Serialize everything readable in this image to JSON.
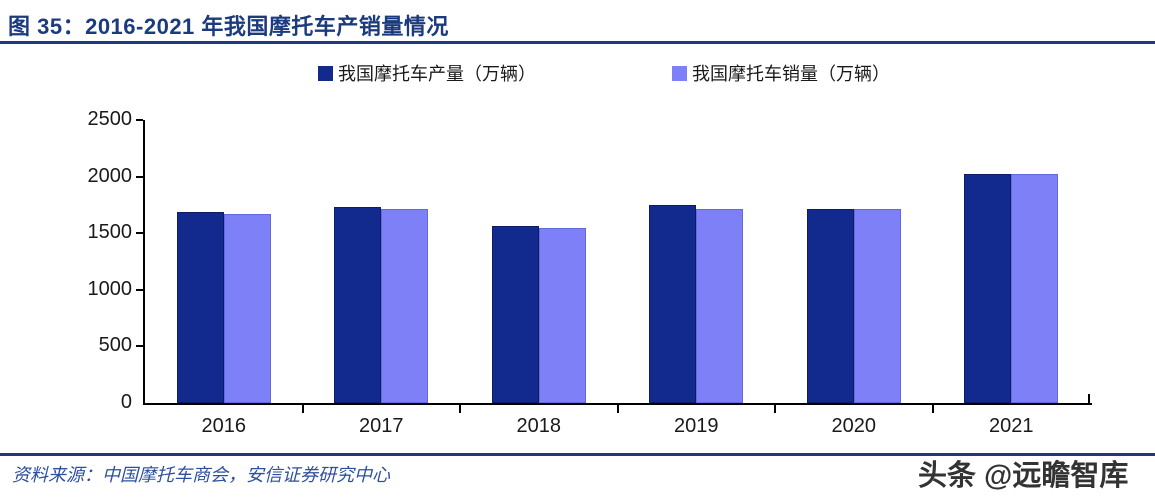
{
  "header": {
    "title": "图 35：2016-2021 年我国摩托车产销量情况"
  },
  "legend": {
    "production_label": "我国摩托车产量（万辆）",
    "sales_label": "我国摩托车销量（万辆）"
  },
  "chart_data": {
    "type": "bar",
    "title": "2016-2021 年我国摩托车产销量情况",
    "categories": [
      "2016",
      "2017",
      "2018",
      "2019",
      "2020",
      "2021"
    ],
    "series": [
      {
        "name": "我国摩托车产量（万辆）",
        "color": "#12298e",
        "values": [
          1690,
          1730,
          1565,
          1745,
          1710,
          2025
        ]
      },
      {
        "name": "我国摩托车销量（万辆）",
        "color": "#7d80f7",
        "values": [
          1670,
          1710,
          1550,
          1710,
          1710,
          2025
        ]
      }
    ],
    "xlabel": "",
    "ylabel": "",
    "ylim": [
      0,
      2500
    ],
    "yticks": [
      0,
      500,
      1000,
      1500,
      2000,
      2500
    ],
    "grid": false,
    "legend_position": "top"
  },
  "colors": {
    "accent_navy": "#1b3b7e",
    "production_bar": "#12298e",
    "sales_bar": "#7d80f7",
    "source_text": "#2d4f9f"
  },
  "footer": {
    "source": "资料来源：中国摩托车商会，安信证券研究中心",
    "watermark": "头条 @远瞻智库"
  }
}
